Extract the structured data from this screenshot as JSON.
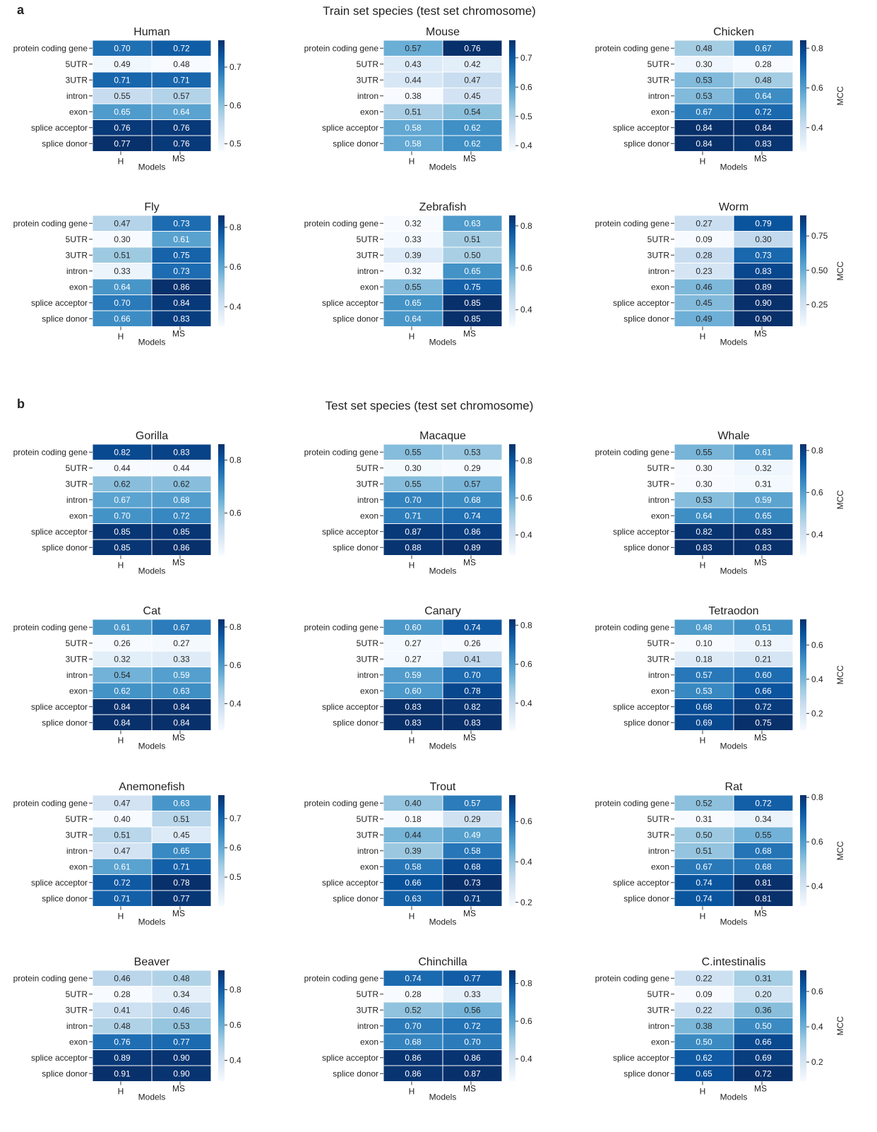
{
  "panels": [
    {
      "letter": "a",
      "title": "Train set species (test set chromosome)"
    },
    {
      "letter": "b",
      "title": "Test set species (test set chromosome)"
    }
  ],
  "common": {
    "rows": [
      "protein coding gene",
      "5UTR",
      "3UTR",
      "intron",
      "exon",
      "splice acceptor",
      "splice donor"
    ],
    "columns": [
      "H",
      "MS"
    ],
    "xlabel": "Models",
    "colorbar_label": "MCC",
    "colormap": "Blues",
    "colormap_stops": [
      "#f7fbff",
      "#deebf7",
      "#c6dbef",
      "#9ecae1",
      "#6baed6",
      "#4292c6",
      "#2171b5",
      "#08519c",
      "#08306b"
    ]
  },
  "chart_data": [
    {
      "type": "heatmap",
      "title": "Human",
      "rows": [
        "protein coding gene",
        "5UTR",
        "3UTR",
        "intron",
        "exon",
        "splice acceptor",
        "splice donor"
      ],
      "columns": [
        "H",
        "MS"
      ],
      "values": [
        [
          0.7,
          0.72
        ],
        [
          0.49,
          0.48
        ],
        [
          0.71,
          0.71
        ],
        [
          0.55,
          0.57
        ],
        [
          0.65,
          0.64
        ],
        [
          0.76,
          0.76
        ],
        [
          0.77,
          0.76
        ]
      ],
      "xlabel": "Models",
      "colorbar_ticks": [
        0.5,
        0.6,
        0.7
      ],
      "colorbar_label": ""
    },
    {
      "type": "heatmap",
      "title": "Mouse",
      "rows": [
        "protein coding gene",
        "5UTR",
        "3UTR",
        "intron",
        "exon",
        "splice acceptor",
        "splice donor"
      ],
      "columns": [
        "H",
        "MS"
      ],
      "values": [
        [
          0.57,
          0.76
        ],
        [
          0.43,
          0.42
        ],
        [
          0.44,
          0.47
        ],
        [
          0.38,
          0.45
        ],
        [
          0.51,
          0.54
        ],
        [
          0.58,
          0.62
        ],
        [
          0.58,
          0.62
        ]
      ],
      "xlabel": "Models",
      "colorbar_ticks": [
        0.4,
        0.5,
        0.6,
        0.7
      ],
      "colorbar_label": ""
    },
    {
      "type": "heatmap",
      "title": "Chicken",
      "rows": [
        "protein coding gene",
        "5UTR",
        "3UTR",
        "intron",
        "exon",
        "splice acceptor",
        "splice donor"
      ],
      "columns": [
        "H",
        "MS"
      ],
      "values": [
        [
          0.48,
          0.67
        ],
        [
          0.3,
          0.28
        ],
        [
          0.53,
          0.48
        ],
        [
          0.53,
          0.64
        ],
        [
          0.67,
          0.72
        ],
        [
          0.84,
          0.84
        ],
        [
          0.84,
          0.83
        ]
      ],
      "xlabel": "Models",
      "colorbar_ticks": [
        0.4,
        0.6,
        0.8
      ],
      "colorbar_label": "MCC"
    },
    {
      "type": "heatmap",
      "title": "Fly",
      "rows": [
        "protein coding gene",
        "5UTR",
        "3UTR",
        "intron",
        "exon",
        "splice acceptor",
        "splice donor"
      ],
      "columns": [
        "H",
        "MS"
      ],
      "values": [
        [
          0.47,
          0.73
        ],
        [
          0.3,
          0.61
        ],
        [
          0.51,
          0.75
        ],
        [
          0.33,
          0.73
        ],
        [
          0.64,
          0.86
        ],
        [
          0.7,
          0.84
        ],
        [
          0.66,
          0.83
        ]
      ],
      "xlabel": "Models",
      "colorbar_ticks": [
        0.4,
        0.6,
        0.8
      ],
      "colorbar_label": ""
    },
    {
      "type": "heatmap",
      "title": "Zebrafish",
      "rows": [
        "protein coding gene",
        "5UTR",
        "3UTR",
        "intron",
        "exon",
        "splice acceptor",
        "splice donor"
      ],
      "columns": [
        "H",
        "MS"
      ],
      "values": [
        [
          0.32,
          0.63
        ],
        [
          0.33,
          0.51
        ],
        [
          0.39,
          0.5
        ],
        [
          0.32,
          0.65
        ],
        [
          0.55,
          0.75
        ],
        [
          0.65,
          0.85
        ],
        [
          0.64,
          0.85
        ]
      ],
      "xlabel": "Models",
      "colorbar_ticks": [
        0.4,
        0.6,
        0.8
      ],
      "colorbar_label": ""
    },
    {
      "type": "heatmap",
      "title": "Worm",
      "rows": [
        "protein coding gene",
        "5UTR",
        "3UTR",
        "intron",
        "exon",
        "splice acceptor",
        "splice donor"
      ],
      "columns": [
        "H",
        "MS"
      ],
      "values": [
        [
          0.27,
          0.79
        ],
        [
          0.09,
          0.3
        ],
        [
          0.28,
          0.73
        ],
        [
          0.23,
          0.83
        ],
        [
          0.46,
          0.89
        ],
        [
          0.45,
          0.9
        ],
        [
          0.49,
          0.9
        ]
      ],
      "xlabel": "Models",
      "colorbar_ticks": [
        0.25,
        0.5,
        0.75
      ],
      "colorbar_tick_labels": [
        "0.25",
        "0.50",
        "0.75"
      ],
      "colorbar_label": "MCC"
    },
    {
      "type": "heatmap",
      "title": "Gorilla",
      "rows": [
        "protein coding gene",
        "5UTR",
        "3UTR",
        "intron",
        "exon",
        "splice acceptor",
        "splice donor"
      ],
      "columns": [
        "H",
        "MS"
      ],
      "values": [
        [
          0.82,
          0.83
        ],
        [
          0.44,
          0.44
        ],
        [
          0.62,
          0.62
        ],
        [
          0.67,
          0.68
        ],
        [
          0.7,
          0.72
        ],
        [
          0.85,
          0.85
        ],
        [
          0.85,
          0.86
        ]
      ],
      "xlabel": "Models",
      "colorbar_ticks": [
        0.6,
        0.8
      ],
      "colorbar_label": ""
    },
    {
      "type": "heatmap",
      "title": "Macaque",
      "rows": [
        "protein coding gene",
        "5UTR",
        "3UTR",
        "intron",
        "exon",
        "splice acceptor",
        "splice donor"
      ],
      "columns": [
        "H",
        "MS"
      ],
      "values": [
        [
          0.55,
          0.53
        ],
        [
          0.3,
          0.29
        ],
        [
          0.55,
          0.57
        ],
        [
          0.7,
          0.68
        ],
        [
          0.71,
          0.74
        ],
        [
          0.87,
          0.86
        ],
        [
          0.88,
          0.89
        ]
      ],
      "xlabel": "Models",
      "colorbar_ticks": [
        0.4,
        0.6,
        0.8
      ],
      "colorbar_label": ""
    },
    {
      "type": "heatmap",
      "title": "Whale",
      "rows": [
        "protein coding gene",
        "5UTR",
        "3UTR",
        "intron",
        "exon",
        "splice acceptor",
        "splice donor"
      ],
      "columns": [
        "H",
        "MS"
      ],
      "values": [
        [
          0.55,
          0.61
        ],
        [
          0.3,
          0.32
        ],
        [
          0.3,
          0.31
        ],
        [
          0.53,
          0.59
        ],
        [
          0.64,
          0.65
        ],
        [
          0.82,
          0.83
        ],
        [
          0.83,
          0.83
        ]
      ],
      "xlabel": "Models",
      "colorbar_ticks": [
        0.4,
        0.6,
        0.8
      ],
      "colorbar_label": "MCC"
    },
    {
      "type": "heatmap",
      "title": "Cat",
      "rows": [
        "protein coding gene",
        "5UTR",
        "3UTR",
        "intron",
        "exon",
        "splice acceptor",
        "splice donor"
      ],
      "columns": [
        "H",
        "MS"
      ],
      "values": [
        [
          0.61,
          0.67
        ],
        [
          0.26,
          0.27
        ],
        [
          0.32,
          0.33
        ],
        [
          0.54,
          0.59
        ],
        [
          0.62,
          0.63
        ],
        [
          0.84,
          0.84
        ],
        [
          0.84,
          0.84
        ]
      ],
      "xlabel": "Models",
      "colorbar_ticks": [
        0.4,
        0.6,
        0.8
      ],
      "colorbar_label": ""
    },
    {
      "type": "heatmap",
      "title": "Canary",
      "rows": [
        "protein coding gene",
        "5UTR",
        "3UTR",
        "intron",
        "exon",
        "splice acceptor",
        "splice donor"
      ],
      "columns": [
        "H",
        "MS"
      ],
      "values": [
        [
          0.6,
          0.74
        ],
        [
          0.27,
          0.26
        ],
        [
          0.27,
          0.41
        ],
        [
          0.59,
          0.7
        ],
        [
          0.6,
          0.78
        ],
        [
          0.83,
          0.82
        ],
        [
          0.83,
          0.83
        ]
      ],
      "xlabel": "Models",
      "colorbar_ticks": [
        0.4,
        0.6,
        0.8
      ],
      "colorbar_label": ""
    },
    {
      "type": "heatmap",
      "title": "Tetraodon",
      "rows": [
        "protein coding gene",
        "5UTR",
        "3UTR",
        "intron",
        "exon",
        "splice acceptor",
        "splice donor"
      ],
      "columns": [
        "H",
        "MS"
      ],
      "values": [
        [
          0.48,
          0.51
        ],
        [
          0.1,
          0.13
        ],
        [
          0.18,
          0.21
        ],
        [
          0.57,
          0.6
        ],
        [
          0.53,
          0.66
        ],
        [
          0.68,
          0.72
        ],
        [
          0.69,
          0.75
        ]
      ],
      "xlabel": "Models",
      "colorbar_ticks": [
        0.2,
        0.4,
        0.6
      ],
      "colorbar_label": "MCC"
    },
    {
      "type": "heatmap",
      "title": "Anemonefish",
      "rows": [
        "protein coding gene",
        "5UTR",
        "3UTR",
        "intron",
        "exon",
        "splice acceptor",
        "splice donor"
      ],
      "columns": [
        "H",
        "MS"
      ],
      "values": [
        [
          0.47,
          0.63
        ],
        [
          0.4,
          0.51
        ],
        [
          0.51,
          0.45
        ],
        [
          0.47,
          0.65
        ],
        [
          0.61,
          0.71
        ],
        [
          0.72,
          0.78
        ],
        [
          0.71,
          0.77
        ]
      ],
      "xlabel": "Models",
      "colorbar_ticks": [
        0.5,
        0.6,
        0.7
      ],
      "colorbar_label": ""
    },
    {
      "type": "heatmap",
      "title": "Trout",
      "rows": [
        "protein coding gene",
        "5UTR",
        "3UTR",
        "intron",
        "exon",
        "splice acceptor",
        "splice donor"
      ],
      "columns": [
        "H",
        "MS"
      ],
      "values": [
        [
          0.4,
          0.57
        ],
        [
          0.18,
          0.29
        ],
        [
          0.44,
          0.49
        ],
        [
          0.39,
          0.58
        ],
        [
          0.58,
          0.68
        ],
        [
          0.66,
          0.73
        ],
        [
          0.63,
          0.71
        ]
      ],
      "xlabel": "Models",
      "colorbar_ticks": [
        0.2,
        0.4,
        0.6
      ],
      "colorbar_label": ""
    },
    {
      "type": "heatmap",
      "title": "Rat",
      "rows": [
        "protein coding gene",
        "5UTR",
        "3UTR",
        "intron",
        "exon",
        "splice acceptor",
        "splice donor"
      ],
      "columns": [
        "H",
        "MS"
      ],
      "values": [
        [
          0.52,
          0.72
        ],
        [
          0.31,
          0.34
        ],
        [
          0.5,
          0.55
        ],
        [
          0.51,
          0.68
        ],
        [
          0.67,
          0.68
        ],
        [
          0.74,
          0.81
        ],
        [
          0.74,
          0.81
        ]
      ],
      "xlabel": "Models",
      "colorbar_ticks": [
        0.4,
        0.6,
        0.8
      ],
      "colorbar_label": "MCC"
    },
    {
      "type": "heatmap",
      "title": "Beaver",
      "rows": [
        "protein coding gene",
        "5UTR",
        "3UTR",
        "intron",
        "exon",
        "splice acceptor",
        "splice donor"
      ],
      "columns": [
        "H",
        "MS"
      ],
      "values": [
        [
          0.46,
          0.48
        ],
        [
          0.28,
          0.34
        ],
        [
          0.41,
          0.46
        ],
        [
          0.48,
          0.53
        ],
        [
          0.76,
          0.77
        ],
        [
          0.89,
          0.9
        ],
        [
          0.91,
          0.9
        ]
      ],
      "xlabel": "Models",
      "colorbar_ticks": [
        0.4,
        0.6,
        0.8
      ],
      "colorbar_label": ""
    },
    {
      "type": "heatmap",
      "title": "Chinchilla",
      "rows": [
        "protein coding gene",
        "5UTR",
        "3UTR",
        "intron",
        "exon",
        "splice acceptor",
        "splice donor"
      ],
      "columns": [
        "H",
        "MS"
      ],
      "values": [
        [
          0.74,
          0.77
        ],
        [
          0.28,
          0.33
        ],
        [
          0.52,
          0.56
        ],
        [
          0.7,
          0.72
        ],
        [
          0.68,
          0.7
        ],
        [
          0.86,
          0.86
        ],
        [
          0.86,
          0.87
        ]
      ],
      "xlabel": "Models",
      "colorbar_ticks": [
        0.4,
        0.6,
        0.8
      ],
      "colorbar_label": ""
    },
    {
      "type": "heatmap",
      "title": "C.intestinalis",
      "rows": [
        "protein coding gene",
        "5UTR",
        "3UTR",
        "intron",
        "exon",
        "splice acceptor",
        "splice donor"
      ],
      "columns": [
        "H",
        "MS"
      ],
      "values": [
        [
          0.22,
          0.31
        ],
        [
          0.09,
          0.2
        ],
        [
          0.22,
          0.36
        ],
        [
          0.38,
          0.5
        ],
        [
          0.5,
          0.66
        ],
        [
          0.62,
          0.69
        ],
        [
          0.65,
          0.72
        ]
      ],
      "xlabel": "Models",
      "colorbar_ticks": [
        0.2,
        0.4,
        0.6
      ],
      "colorbar_label": "MCC"
    }
  ]
}
